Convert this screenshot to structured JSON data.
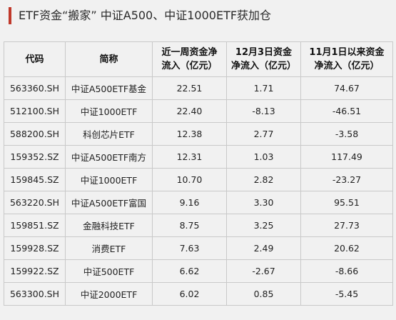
{
  "title": "ETF资金“搬家” 中证A500、中证1000ETF获加仓",
  "colors": {
    "accent": "#c0392b",
    "background": "#f1f1f1",
    "border": "#c9c9c9",
    "text": "#222222"
  },
  "table": {
    "headers": [
      {
        "line1": "代码",
        "line2": ""
      },
      {
        "line1": "简称",
        "line2": ""
      },
      {
        "line1": "近一周资金净",
        "line2": "流入（亿元）"
      },
      {
        "line1": "12月3日资金",
        "line2": "净流入（亿元）"
      },
      {
        "line1": "11月1日以来资金",
        "line2": "净流入（亿元）"
      }
    ],
    "rows": [
      {
        "code": "563360.SH",
        "name": "中证A500ETF基金",
        "week": "22.51",
        "dec3": "1.71",
        "since_nov1": "74.67"
      },
      {
        "code": "512100.SH",
        "name": "中证1000ETF",
        "week": "22.40",
        "dec3": "-8.13",
        "since_nov1": "-46.51"
      },
      {
        "code": "588200.SH",
        "name": "科创芯片ETF",
        "week": "12.38",
        "dec3": "2.77",
        "since_nov1": "-3.58"
      },
      {
        "code": "159352.SZ",
        "name": "中证A500ETF南方",
        "week": "12.31",
        "dec3": "1.03",
        "since_nov1": "117.49"
      },
      {
        "code": "159845.SZ",
        "name": "中证1000ETF",
        "week": "10.70",
        "dec3": "2.82",
        "since_nov1": "-23.27"
      },
      {
        "code": "563220.SH",
        "name": "中证A500ETF富国",
        "week": "9.16",
        "dec3": "3.30",
        "since_nov1": "95.51"
      },
      {
        "code": "159851.SZ",
        "name": "金融科技ETF",
        "week": "8.75",
        "dec3": "3.25",
        "since_nov1": "27.73"
      },
      {
        "code": "159928.SZ",
        "name": "消费ETF",
        "week": "7.63",
        "dec3": "2.49",
        "since_nov1": "20.62"
      },
      {
        "code": "159922.SZ",
        "name": "中证500ETF",
        "week": "6.62",
        "dec3": "-2.67",
        "since_nov1": "-8.66"
      },
      {
        "code": "563300.SH",
        "name": "中证2000ETF",
        "week": "6.02",
        "dec3": "0.85",
        "since_nov1": "-5.45"
      }
    ]
  }
}
